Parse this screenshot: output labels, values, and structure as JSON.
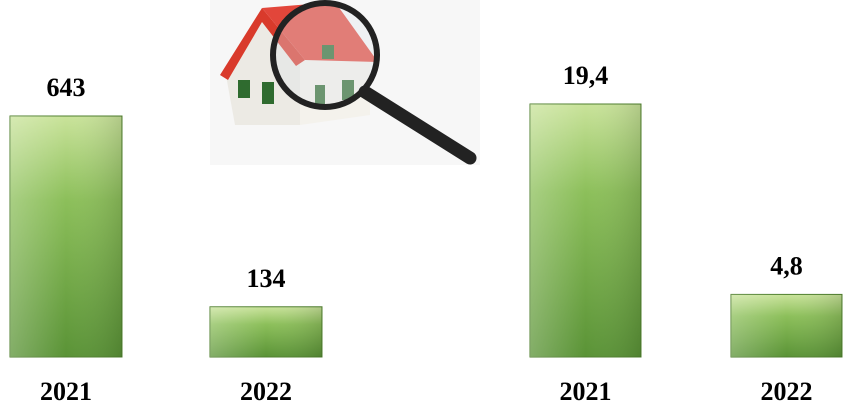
{
  "chart_data": [
    {
      "type": "bar",
      "categories": [
        "2021",
        "2022"
      ],
      "values": [
        643,
        134
      ],
      "color": "#6aa84f"
    },
    {
      "type": "bar",
      "categories": [
        "2021",
        "2022"
      ],
      "values": [
        19.4,
        4.8
      ],
      "value_labels": [
        "19,4",
        "4,8"
      ],
      "color": "#6aa84f"
    }
  ]
}
